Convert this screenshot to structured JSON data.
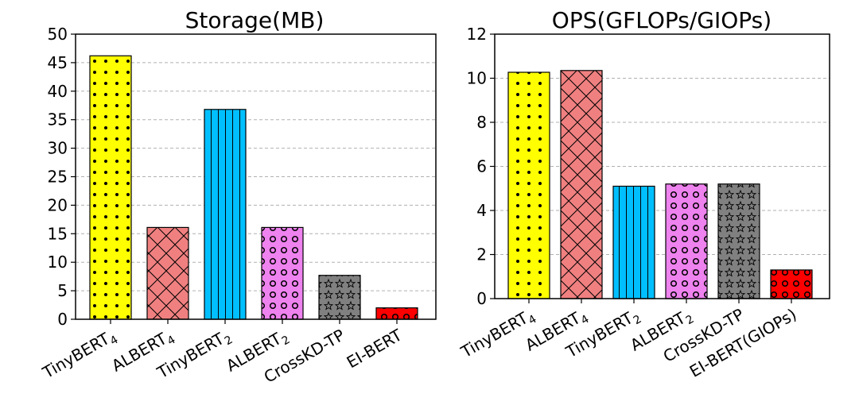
{
  "chart_data": [
    {
      "type": "bar",
      "title": "Storage(MB)",
      "xlabel": "",
      "ylabel": "",
      "ylim": [
        0,
        50
      ],
      "yticks": [
        0,
        5,
        10,
        15,
        20,
        25,
        30,
        35,
        40,
        45,
        50
      ],
      "grid": true,
      "categories": [
        {
          "base": "TinyBERT",
          "sub": "4"
        },
        {
          "base": "ALBERT",
          "sub": "4"
        },
        {
          "base": "TinyBERT",
          "sub": "2"
        },
        {
          "base": "ALBERT",
          "sub": "2"
        },
        {
          "base": "CrossKD-TP",
          "sub": ""
        },
        {
          "base": "EI-BERT",
          "sub": ""
        }
      ],
      "values": [
        46.2,
        16.1,
        36.8,
        16.1,
        7.7,
        2.0
      ],
      "colors": [
        "#ffff00",
        "#f08080",
        "#00bfff",
        "#ee82ee",
        "#808080",
        "#ff0000"
      ],
      "patterns": [
        "dots",
        "crosshatch",
        "vlines",
        "rings",
        "stars",
        "rings"
      ]
    },
    {
      "type": "bar",
      "title": "OPS(GFLOPs/GIOPs)",
      "xlabel": "",
      "ylabel": "",
      "ylim": [
        0,
        12
      ],
      "yticks": [
        0,
        2,
        4,
        6,
        8,
        10,
        12
      ],
      "grid": true,
      "categories": [
        {
          "base": "TinyBERT",
          "sub": "4"
        },
        {
          "base": "ALBERT",
          "sub": "4"
        },
        {
          "base": "TinyBERT",
          "sub": "2"
        },
        {
          "base": "ALBERT",
          "sub": "2"
        },
        {
          "base": "CrossKD-TP",
          "sub": ""
        },
        {
          "base": "EI-BERT(GIOPs)",
          "sub": ""
        }
      ],
      "values": [
        10.27,
        10.35,
        5.1,
        5.2,
        5.2,
        1.3
      ],
      "colors": [
        "#ffff00",
        "#f08080",
        "#00bfff",
        "#ee82ee",
        "#808080",
        "#ff0000"
      ],
      "patterns": [
        "dots",
        "crosshatch",
        "vlines",
        "rings",
        "stars",
        "rings"
      ]
    }
  ]
}
